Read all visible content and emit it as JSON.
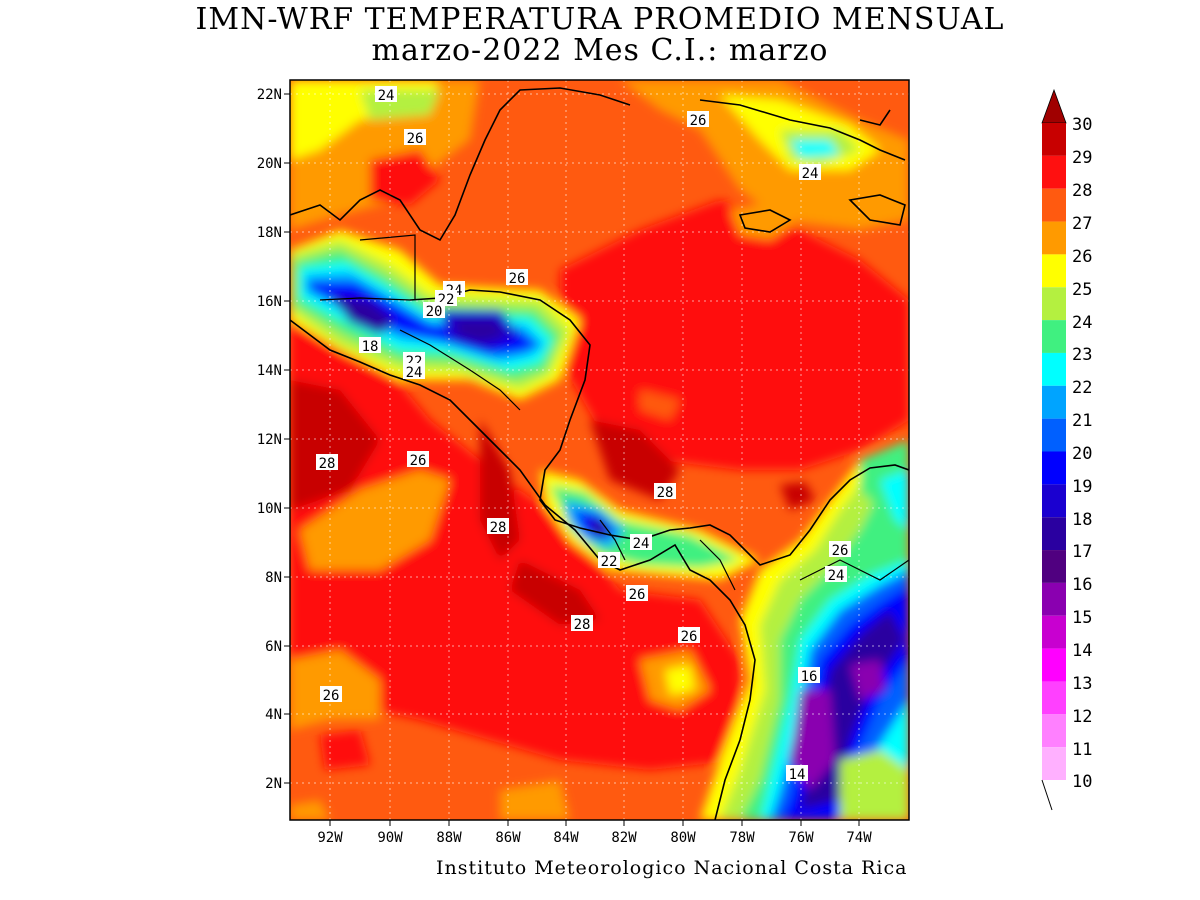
{
  "header": {
    "title_line1": "IMN-WRF  TEMPERATURA PROMEDIO MENSUAL",
    "title_line2": "marzo-2022 Mes C.I.: marzo"
  },
  "footer": {
    "credit": "Instituto Meteorologico Nacional Costa Rica"
  },
  "axes": {
    "lat_labels": [
      "22N",
      "20N",
      "18N",
      "16N",
      "14N",
      "12N",
      "10N",
      "8N",
      "6N",
      "4N",
      "2N"
    ],
    "lon_labels": [
      "92W",
      "90W",
      "88W",
      "86W",
      "84W",
      "82W",
      "80W",
      "78W",
      "76W",
      "74W"
    ]
  },
  "legend": {
    "levels": [
      "30",
      "29",
      "28",
      "27",
      "26",
      "25",
      "24",
      "23",
      "22",
      "21",
      "20",
      "19",
      "18",
      "17",
      "16",
      "15",
      "14",
      "13",
      "12",
      "11",
      "10"
    ],
    "colors": [
      "#a00000",
      "#c80000",
      "#ff1010",
      "#ff5a10",
      "#ff9a00",
      "#ffff00",
      "#b4f040",
      "#40f080",
      "#00ffff",
      "#00a4ff",
      "#0060ff",
      "#0000ff",
      "#1a00d0",
      "#2a00a0",
      "#500080",
      "#8a00b0",
      "#c800d0",
      "#ff00ff",
      "#ff40ff",
      "#ff80ff",
      "#ffb0ff"
    ]
  },
  "contour_labels": [
    "24",
    "26",
    "26",
    "24",
    "26",
    "24",
    "22",
    "20",
    "18",
    "22",
    "24",
    "28",
    "26",
    "28",
    "28",
    "24",
    "22",
    "26",
    "26",
    "24",
    "28",
    "26",
    "26",
    "16",
    "14"
  ],
  "chart_data": {
    "type": "heatmap",
    "variable": "Temperatura promedio mensual",
    "levels": [
      10,
      11,
      12,
      13,
      14,
      15,
      16,
      17,
      18,
      19,
      20,
      21,
      22,
      23,
      24,
      25,
      26,
      27,
      28,
      29,
      30
    ],
    "x_ticks": [
      "92W",
      "90W",
      "88W",
      "86W",
      "84W",
      "82W",
      "80W",
      "78W",
      "76W",
      "74W"
    ],
    "y_ticks": [
      "2N",
      "4N",
      "6N",
      "8N",
      "10N",
      "12N",
      "14N",
      "16N",
      "18N",
      "20N",
      "22N"
    ],
    "xlim": [
      "93.2W",
      "72.0W"
    ],
    "ylim": [
      "1N",
      "22.4N"
    ],
    "grid": true,
    "legend": "right"
  }
}
